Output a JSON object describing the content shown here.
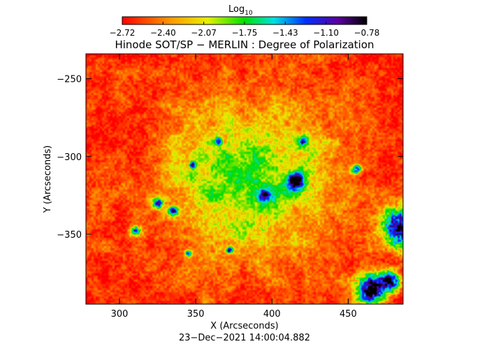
{
  "chart_data": {
    "type": "heatmap",
    "title": "Hinode SOT/SP − MERLIN : Degree of Polarization",
    "colorbar": {
      "label_base": "Log",
      "label_sub": "10",
      "ticks": [
        "−2.72",
        "−2.40",
        "−2.07",
        "−1.75",
        "−1.43",
        "−1.10",
        "−0.78"
      ],
      "range": [
        -2.72,
        -0.78
      ],
      "colormap": "rainbow (red low → black high)"
    },
    "xlabel": "X (Arcseconds)",
    "ylabel": "Y (Arcseconds)",
    "x_ticks": [
      300,
      350,
      400,
      450
    ],
    "x_tick_labels": [
      "300",
      "350",
      "400",
      "450"
    ],
    "y_ticks": [
      -250,
      -300,
      -350
    ],
    "y_tick_labels": [
      "−250",
      "−300",
      "−350"
    ],
    "xlim": [
      278,
      486
    ],
    "ylim": [
      -395,
      -234
    ],
    "timestamp": "23−Dec−2021 14:00:04.882",
    "features": [
      {
        "x": 415,
        "y": -316,
        "r": 5,
        "level": 0.92
      },
      {
        "x": 455,
        "y": -308,
        "r": 3,
        "level": 0.75
      },
      {
        "x": 465,
        "y": -385,
        "r": 9,
        "level": 1.0
      },
      {
        "x": 485,
        "y": -345,
        "r": 12,
        "level": 0.9
      },
      {
        "x": 478,
        "y": -380,
        "r": 6,
        "level": 0.85
      },
      {
        "x": 348,
        "y": -305,
        "r": 2,
        "level": 0.7
      },
      {
        "x": 365,
        "y": -290,
        "r": 2,
        "level": 0.65
      },
      {
        "x": 325,
        "y": -330,
        "r": 3,
        "level": 0.8
      },
      {
        "x": 335,
        "y": -335,
        "r": 3,
        "level": 0.75
      },
      {
        "x": 372,
        "y": -360,
        "r": 2,
        "level": 0.72
      },
      {
        "x": 345,
        "y": -362,
        "r": 2,
        "level": 0.68
      },
      {
        "x": 395,
        "y": -325,
        "r": 4,
        "level": 0.6
      },
      {
        "x": 420,
        "y": -290,
        "r": 3,
        "level": 0.6
      },
      {
        "x": 310,
        "y": -348,
        "r": 3,
        "level": 0.62
      }
    ]
  }
}
